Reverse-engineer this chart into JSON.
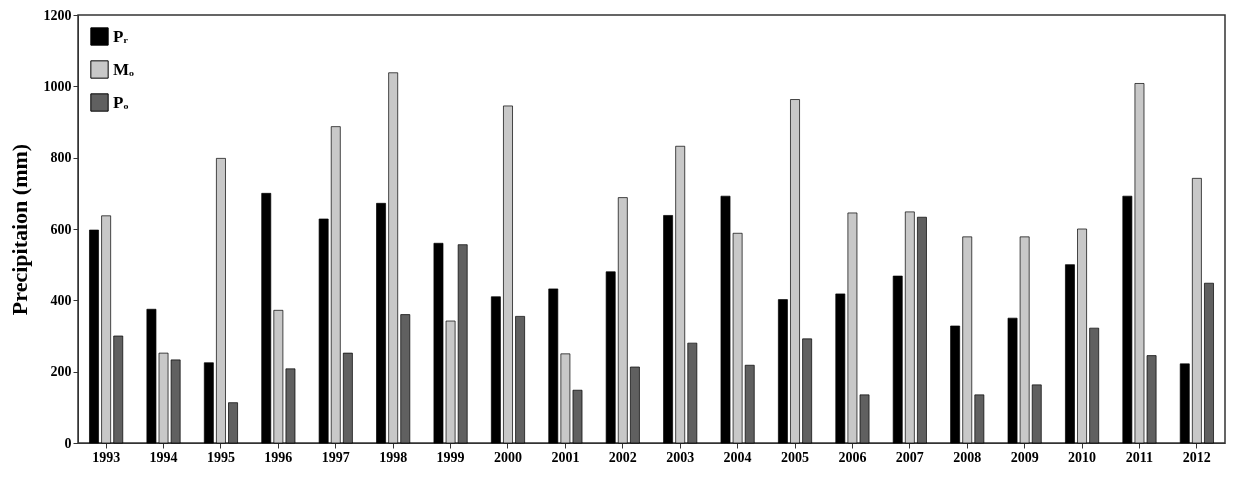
{
  "chart_data": {
    "type": "bar",
    "ylabel": "Precipitaion (mm)",
    "categories": [
      "1993",
      "1994",
      "1995",
      "1996",
      "1997",
      "1998",
      "1999",
      "2000",
      "2001",
      "2002",
      "2003",
      "2004",
      "2005",
      "2006",
      "2007",
      "2008",
      "2009",
      "2010",
      "2011",
      "2012"
    ],
    "series": [
      {
        "name": "Pᵣ",
        "color": "#000000",
        "values": [
          597,
          375,
          225,
          700,
          628,
          672,
          560,
          410,
          432,
          480,
          638,
          692,
          402,
          418,
          468,
          328,
          350,
          500,
          692,
          222
        ]
      },
      {
        "name": "Mₒ",
        "color": "#c8c8c8",
        "values": [
          637,
          252,
          798,
          372,
          887,
          1038,
          342,
          945,
          250,
          688,
          832,
          588,
          963,
          645,
          648,
          578,
          578,
          600,
          1008,
          742
        ]
      },
      {
        "name": "Pₒ",
        "color": "#606060",
        "values": [
          300,
          233,
          113,
          208,
          252,
          360,
          556,
          355,
          148,
          213,
          280,
          218,
          292,
          135,
          633,
          135,
          163,
          322,
          245,
          448
        ]
      }
    ],
    "ylim": [
      0,
      1200
    ],
    "yticks": [
      0,
      200,
      400,
      600,
      800,
      1000,
      1200
    ],
    "grid": false,
    "legend": "top left"
  }
}
